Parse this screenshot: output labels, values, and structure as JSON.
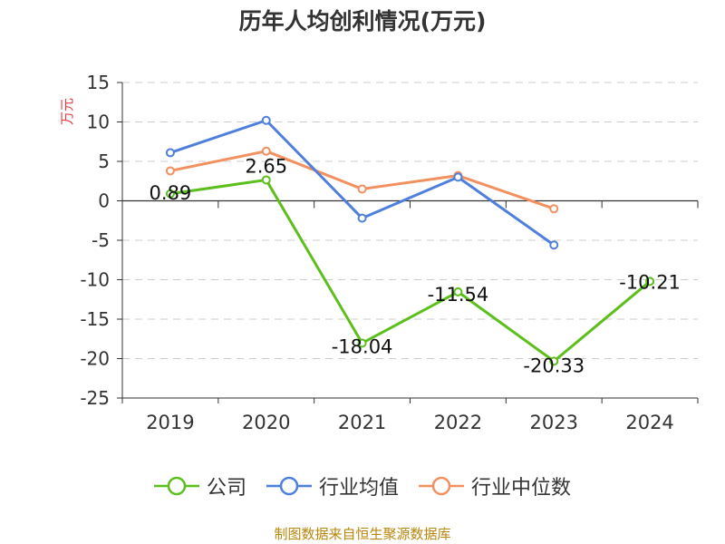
{
  "page": {
    "title": "历年人均创利情况(万元)",
    "source": "制图数据来自恒生聚源数据库"
  },
  "chart_data": {
    "type": "line",
    "title": "历年人均创利情况(万元)",
    "xlabel": "",
    "ylabel": "万元",
    "categories": [
      "2019",
      "2020",
      "2021",
      "2022",
      "2023",
      "2024"
    ],
    "ylim": [
      -25,
      15
    ],
    "yticks": [
      15,
      10,
      5,
      0,
      -5,
      -10,
      -15,
      -20,
      -25
    ],
    "grid": true,
    "legend_position": "bottom",
    "series": [
      {
        "name": "公司",
        "color": "#5cbf1c",
        "values": [
          0.89,
          2.65,
          -18.04,
          -11.54,
          -20.33,
          -10.21
        ],
        "labels": [
          "0.89",
          "2.65",
          "-18.04",
          "-11.54",
          "-20.33",
          "-10.21"
        ]
      },
      {
        "name": "行业均值",
        "color": "#4f7fdc",
        "values": [
          6.1,
          10.2,
          -2.2,
          3.0,
          -5.6,
          null
        ]
      },
      {
        "name": "行业中位数",
        "color": "#f39060",
        "values": [
          3.8,
          6.3,
          1.5,
          3.2,
          -1.0,
          null
        ]
      }
    ]
  }
}
